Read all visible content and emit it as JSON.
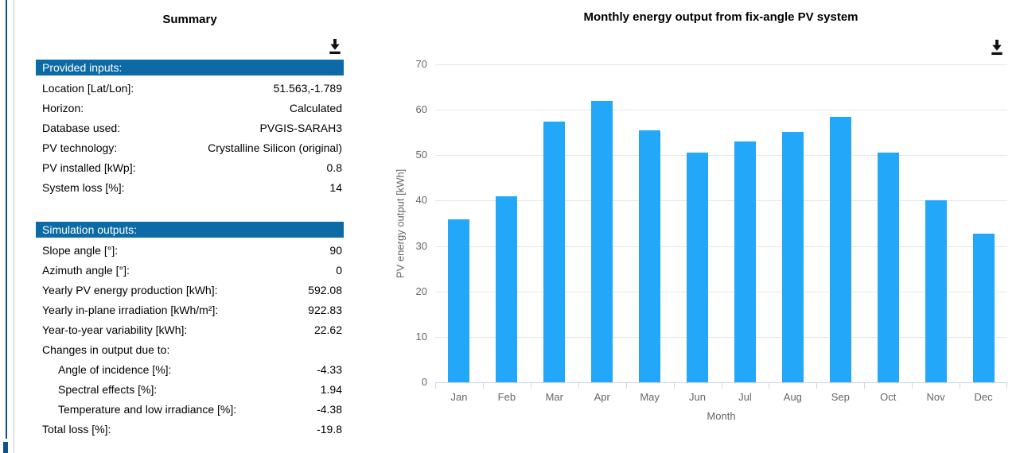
{
  "colors": {
    "section_header_bg": "#0c6aa6",
    "section_header_text": "#ffffff",
    "bar_fill": "#22a7f9",
    "gridline": "#e6e6e6",
    "axis_line": "#ccd6eb",
    "axis_text": "#666666",
    "edge_accent": "#10508d"
  },
  "summary": {
    "title": "Summary",
    "download_icon": "download-icon",
    "provided_inputs": {
      "header": "Provided inputs:",
      "rows": [
        {
          "label": "Location [Lat/Lon]:",
          "value": "51.563,-1.789"
        },
        {
          "label": "Horizon:",
          "value": "Calculated"
        },
        {
          "label": "Database used:",
          "value": "PVGIS-SARAH3"
        },
        {
          "label": "PV technology:",
          "value": "Crystalline Silicon (original)"
        },
        {
          "label": "PV installed [kWp]:",
          "value": "0.8"
        },
        {
          "label": "System loss [%]:",
          "value": "14"
        }
      ]
    },
    "simulation_outputs": {
      "header": "Simulation outputs:",
      "rows": [
        {
          "label": "Slope angle [°]:",
          "value": "90"
        },
        {
          "label": "Azimuth angle [°]:",
          "value": "0"
        },
        {
          "label": "Yearly PV energy production [kWh]:",
          "value": "592.08"
        },
        {
          "label": "Yearly in-plane irradiation [kWh/m²]:",
          "value": "922.83"
        },
        {
          "label": "Year-to-year variability [kWh]:",
          "value": "22.62"
        },
        {
          "label": "Changes in output due to:",
          "value": ""
        },
        {
          "label": "Angle of incidence [%]:",
          "value": "-4.33",
          "indent": true
        },
        {
          "label": "Spectral effects [%]:",
          "value": "1.94",
          "indent": true
        },
        {
          "label": "Temperature and low irradiance [%]:",
          "value": "-4.38",
          "indent": true
        },
        {
          "label": "Total loss [%]:",
          "value": "-19.8"
        }
      ]
    }
  },
  "chart_data": {
    "type": "bar",
    "title": "Monthly energy output from fix-angle PV system",
    "categories": [
      "Jan",
      "Feb",
      "Mar",
      "Apr",
      "May",
      "Jun",
      "Jul",
      "Aug",
      "Sep",
      "Oct",
      "Nov",
      "Dec"
    ],
    "values": [
      35.8,
      40.9,
      57.4,
      61.9,
      55.4,
      50.5,
      53.1,
      55.2,
      58.5,
      50.6,
      40.1,
      32.8
    ],
    "xlabel": "Month",
    "ylabel": "PV energy output [kWh]",
    "ylim": [
      0,
      70
    ],
    "ytick_interval": 10,
    "grid": true,
    "legend": "none",
    "bar_color": "#22a7f9",
    "download_icon": "download-icon"
  }
}
